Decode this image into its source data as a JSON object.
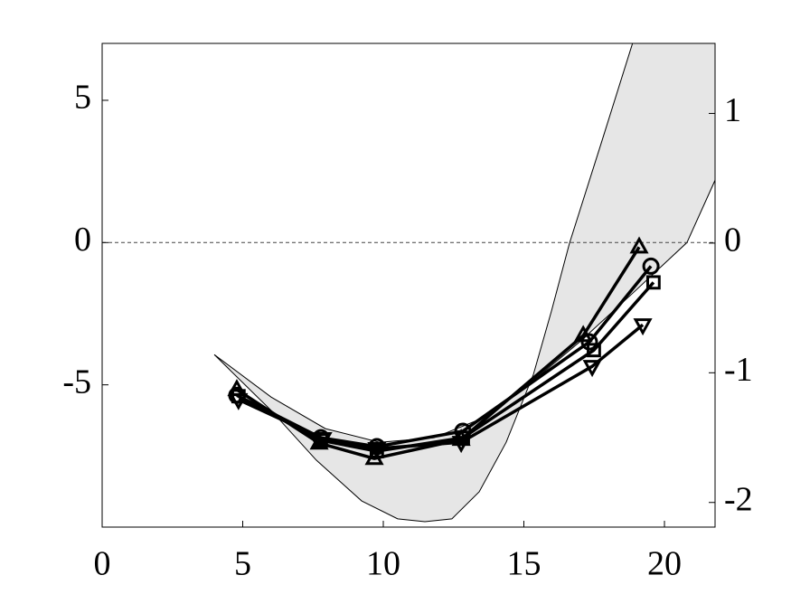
{
  "chart_data": {
    "type": "line",
    "xlim": [
      0,
      21.8
    ],
    "xticks": [
      0,
      5,
      10,
      15,
      20
    ],
    "ylim": [
      -10,
      7
    ],
    "yticks": [
      -5,
      0,
      5
    ],
    "y2lim": [
      -2.19,
      1.54
    ],
    "y2ticks": [
      -2,
      -1,
      0,
      1
    ],
    "hline": 0,
    "band": {
      "color": "#e6e6e6",
      "x_lower": [
        3.99,
        6.01,
        7.62,
        9.23,
        10.51,
        11.48,
        12.44,
        13.41,
        14.37,
        15.34,
        15.98,
        16.62,
        17.75,
        18.87
      ],
      "lower": [
        -3.94,
        -5.9,
        -7.65,
        -9.08,
        -9.71,
        -9.81,
        -9.71,
        -8.76,
        -7.02,
        -4.63,
        -2.41,
        -0.03,
        3.49,
        7.02
      ],
      "x_upper": [
        3.99,
        6.01,
        7.94,
        9.87,
        11.8,
        13.41,
        15.02,
        16.95,
        18.87,
        20.8,
        21.8
      ],
      "upper": [
        -3.94,
        -5.43,
        -6.54,
        -7.02,
        -6.86,
        -6.22,
        -5.11,
        -3.52,
        -1.78,
        0,
        2.19
      ]
    },
    "series": [
      {
        "marker": "circle",
        "color": "#000000",
        "x": [
          4.79,
          7.78,
          9.77,
          12.83,
          17.33,
          19.52
        ],
        "values": [
          -5.37,
          -6.86,
          -7.17,
          -6.63,
          -3.49,
          -0.83
        ]
      },
      {
        "marker": "square",
        "color": "#000000",
        "x": [
          4.85,
          7.78,
          9.77,
          12.83,
          17.49,
          19.61
        ],
        "values": [
          -5.4,
          -6.95,
          -7.33,
          -6.86,
          -3.78,
          -1.4
        ]
      },
      {
        "marker": "triangle-up",
        "color": "#000000",
        "x": [
          4.79,
          7.72,
          9.68,
          12.77,
          17.11,
          19.1
        ],
        "values": [
          -5.17,
          -7.05,
          -7.59,
          -6.92,
          -3.27,
          -0.16
        ]
      },
      {
        "marker": "triangle-down",
        "color": "#000000",
        "x": [
          4.85,
          7.85,
          9.77,
          12.77,
          17.43,
          19.23
        ],
        "values": [
          -5.52,
          -6.89,
          -7.24,
          -7.02,
          -4.35,
          -2.89
        ]
      }
    ]
  }
}
